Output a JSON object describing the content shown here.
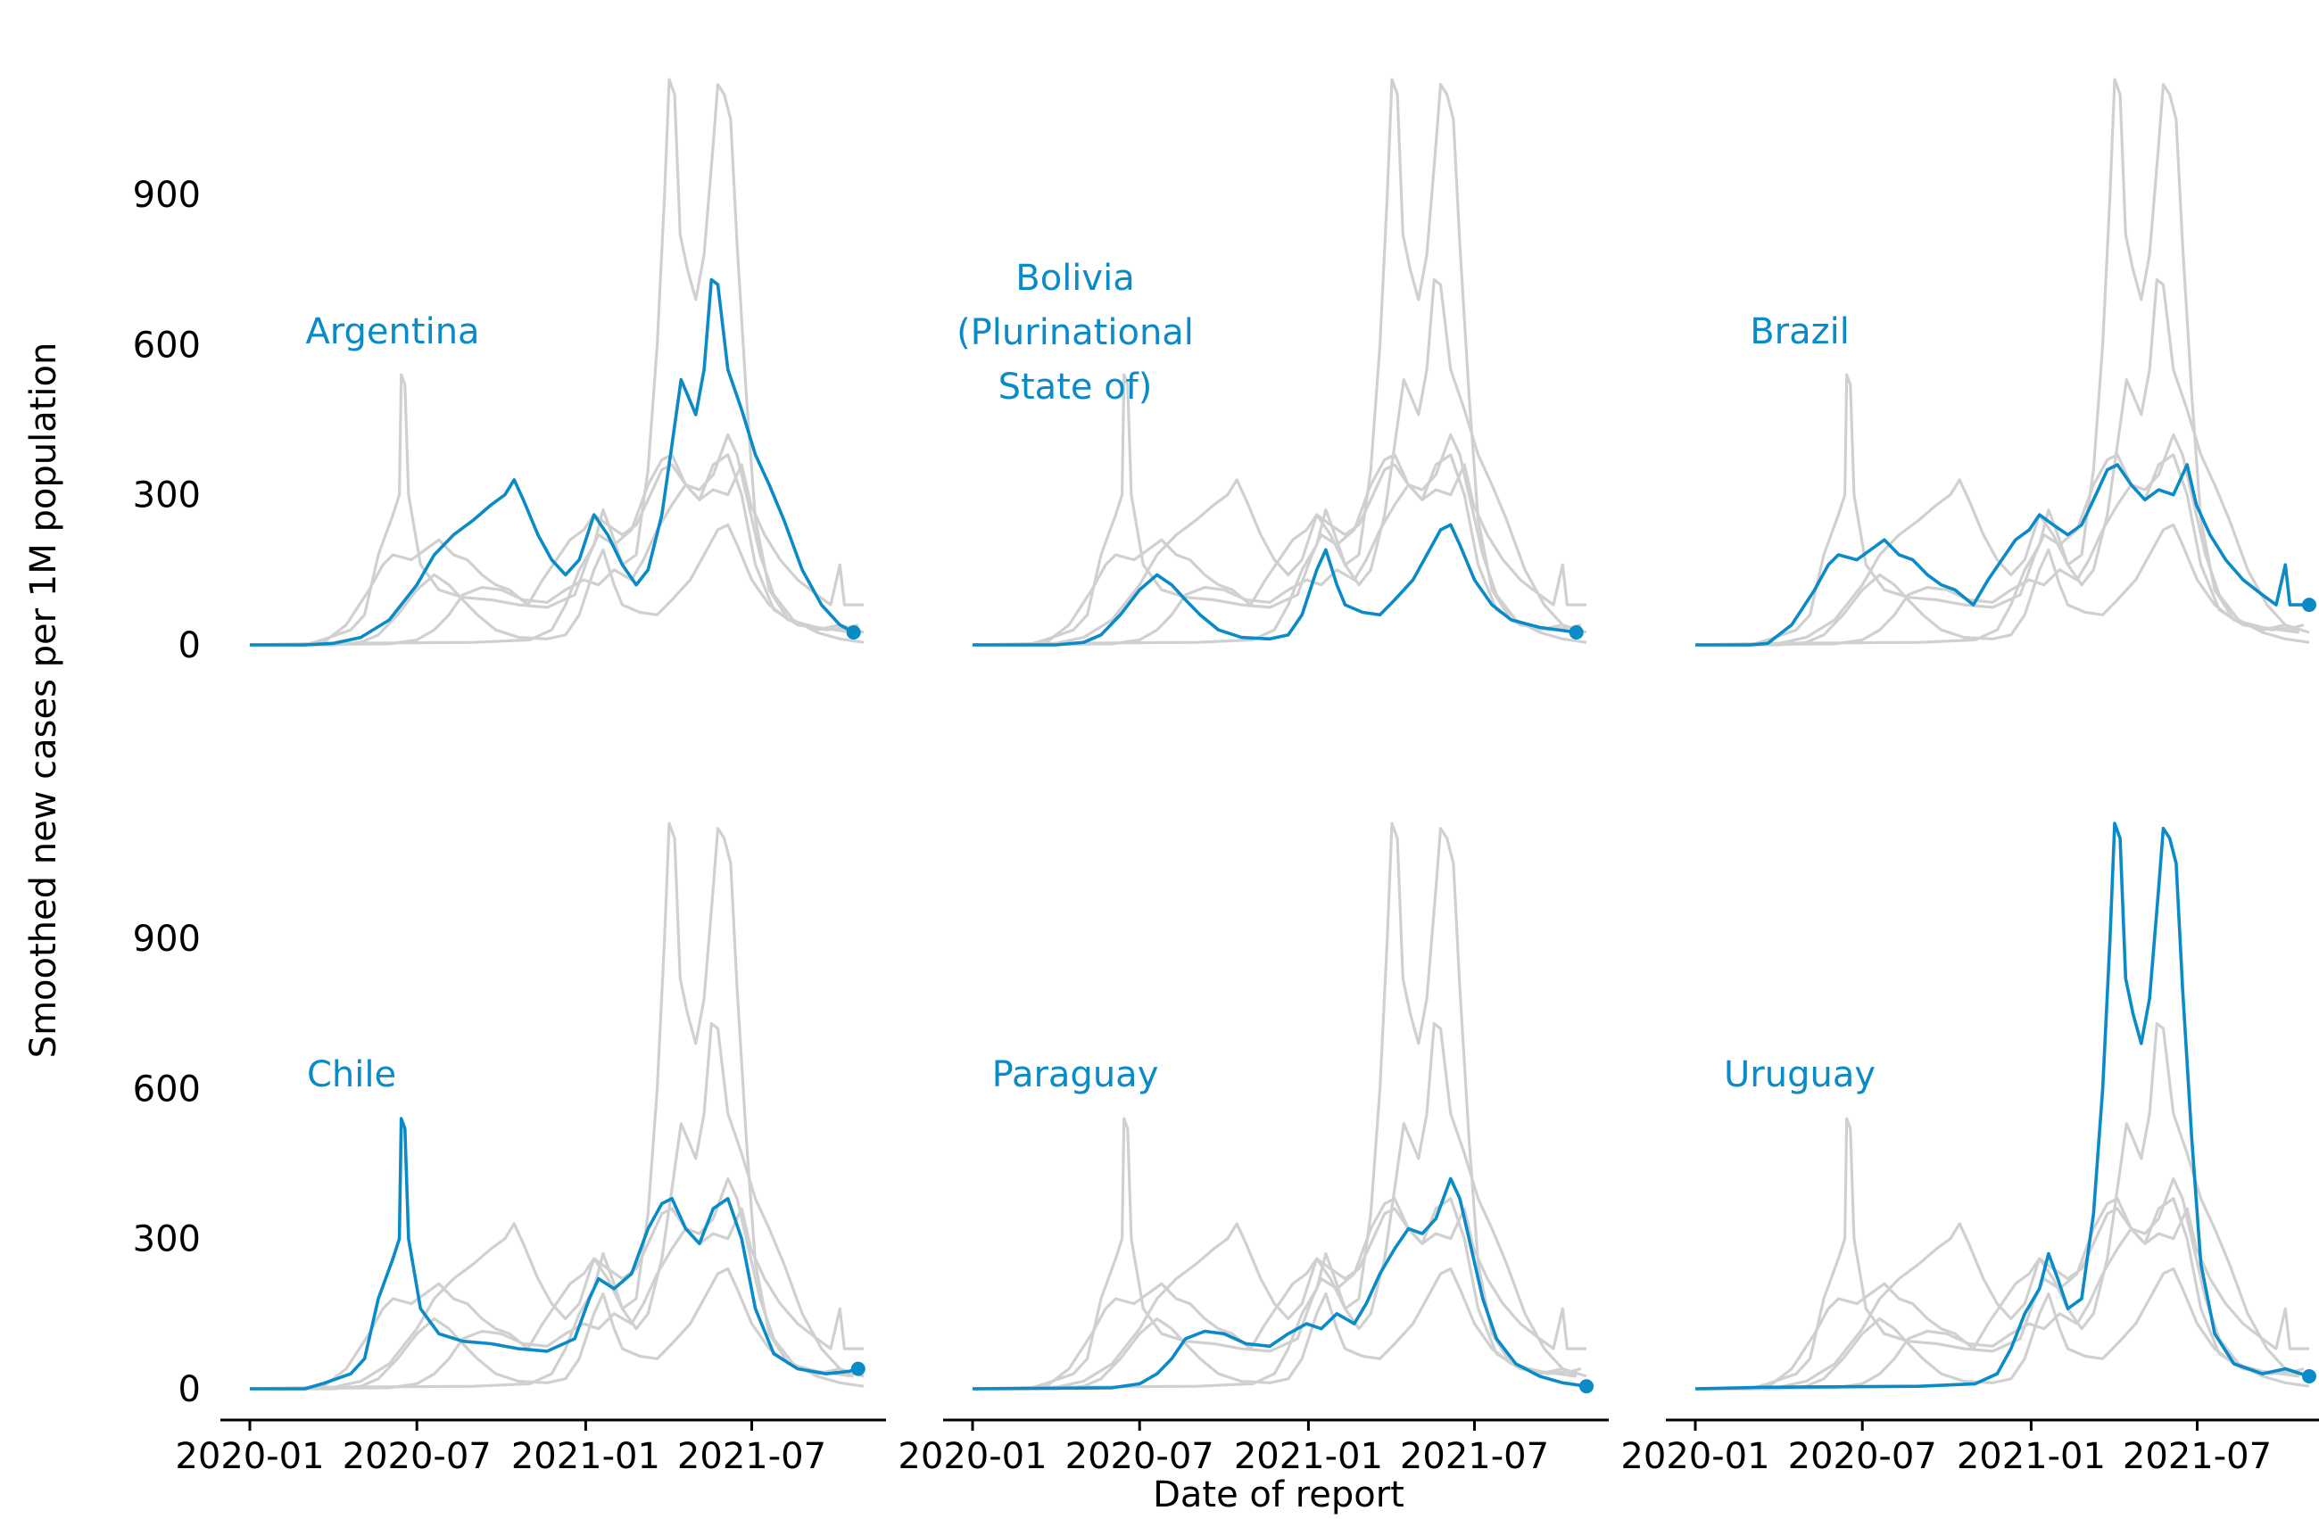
{
  "figure": {
    "xlabel": "Date of report",
    "ylabel": "Smoothed new cases per 1M population"
  },
  "chart_data": {
    "type": "line",
    "ylim": [
      0,
      1200
    ],
    "yticks": [
      0,
      300,
      600,
      900
    ],
    "xticks": [
      "2020-01",
      "2020-07",
      "2021-01",
      "2021-07"
    ],
    "xlim": [
      "2020-01-01",
      "2021-10-31"
    ],
    "grid": false,
    "highlight_color": "#0a8ac6",
    "context_color": "#d0d0d0",
    "countries": [
      {
        "name": "Argentina",
        "points": [
          [
            "2020-01-01",
            0
          ],
          [
            "2020-03-01",
            0
          ],
          [
            "2020-04-01",
            3
          ],
          [
            "2020-05-01",
            15
          ],
          [
            "2020-06-01",
            50
          ],
          [
            "2020-07-01",
            120
          ],
          [
            "2020-07-20",
            180
          ],
          [
            "2020-08-10",
            220
          ],
          [
            "2020-09-01",
            250
          ],
          [
            "2020-09-20",
            280
          ],
          [
            "2020-10-05",
            300
          ],
          [
            "2020-10-15",
            330
          ],
          [
            "2020-10-25",
            290
          ],
          [
            "2020-11-10",
            220
          ],
          [
            "2020-11-25",
            170
          ],
          [
            "2020-12-10",
            140
          ],
          [
            "2020-12-25",
            170
          ],
          [
            "2021-01-10",
            260
          ],
          [
            "2021-01-25",
            220
          ],
          [
            "2021-02-10",
            160
          ],
          [
            "2021-02-25",
            120
          ],
          [
            "2021-03-10",
            150
          ],
          [
            "2021-03-25",
            260
          ],
          [
            "2021-04-05",
            400
          ],
          [
            "2021-04-15",
            530
          ],
          [
            "2021-04-22",
            500
          ],
          [
            "2021-05-01",
            460
          ],
          [
            "2021-05-10",
            550
          ],
          [
            "2021-05-18",
            730
          ],
          [
            "2021-05-25",
            720
          ],
          [
            "2021-06-05",
            550
          ],
          [
            "2021-06-20",
            470
          ],
          [
            "2021-07-05",
            380
          ],
          [
            "2021-07-20",
            320
          ],
          [
            "2021-08-05",
            250
          ],
          [
            "2021-08-25",
            150
          ],
          [
            "2021-09-15",
            80
          ],
          [
            "2021-10-05",
            40
          ],
          [
            "2021-10-20",
            25
          ]
        ]
      },
      {
        "name": "Bolivia (Plurinational State of)",
        "points": [
          [
            "2020-01-01",
            0
          ],
          [
            "2020-04-01",
            0
          ],
          [
            "2020-05-01",
            5
          ],
          [
            "2020-05-20",
            20
          ],
          [
            "2020-06-10",
            60
          ],
          [
            "2020-07-01",
            110
          ],
          [
            "2020-07-20",
            140
          ],
          [
            "2020-08-05",
            120
          ],
          [
            "2020-08-20",
            90
          ],
          [
            "2020-09-05",
            60
          ],
          [
            "2020-09-25",
            30
          ],
          [
            "2020-10-20",
            15
          ],
          [
            "2020-11-20",
            12
          ],
          [
            "2020-12-10",
            20
          ],
          [
            "2020-12-25",
            60
          ],
          [
            "2021-01-10",
            150
          ],
          [
            "2021-01-20",
            190
          ],
          [
            "2021-02-01",
            120
          ],
          [
            "2021-02-10",
            80
          ],
          [
            "2021-03-01",
            65
          ],
          [
            "2021-03-20",
            60
          ],
          [
            "2021-04-05",
            90
          ],
          [
            "2021-04-25",
            130
          ],
          [
            "2021-05-10",
            180
          ],
          [
            "2021-05-25",
            230
          ],
          [
            "2021-06-05",
            240
          ],
          [
            "2021-06-15",
            200
          ],
          [
            "2021-07-01",
            130
          ],
          [
            "2021-07-20",
            80
          ],
          [
            "2021-08-10",
            50
          ],
          [
            "2021-09-10",
            35
          ],
          [
            "2021-10-20",
            25
          ]
        ]
      },
      {
        "name": "Brazil",
        "points": [
          [
            "2020-01-01",
            0
          ],
          [
            "2020-03-01",
            0
          ],
          [
            "2020-03-20",
            3
          ],
          [
            "2020-04-15",
            40
          ],
          [
            "2020-05-10",
            110
          ],
          [
            "2020-05-25",
            160
          ],
          [
            "2020-06-05",
            180
          ],
          [
            "2020-06-25",
            170
          ],
          [
            "2020-07-10",
            190
          ],
          [
            "2020-07-25",
            210
          ],
          [
            "2020-08-10",
            180
          ],
          [
            "2020-08-25",
            170
          ],
          [
            "2020-09-10",
            140
          ],
          [
            "2020-09-25",
            120
          ],
          [
            "2020-10-10",
            110
          ],
          [
            "2020-10-30",
            80
          ],
          [
            "2020-11-15",
            130
          ],
          [
            "2020-11-30",
            170
          ],
          [
            "2020-12-15",
            210
          ],
          [
            "2020-12-30",
            230
          ],
          [
            "2021-01-10",
            260
          ],
          [
            "2021-01-25",
            240
          ],
          [
            "2021-02-10",
            220
          ],
          [
            "2021-02-25",
            240
          ],
          [
            "2021-03-10",
            290
          ],
          [
            "2021-03-25",
            350
          ],
          [
            "2021-04-05",
            360
          ],
          [
            "2021-04-20",
            320
          ],
          [
            "2021-05-05",
            290
          ],
          [
            "2021-05-20",
            310
          ],
          [
            "2021-06-05",
            300
          ],
          [
            "2021-06-20",
            360
          ],
          [
            "2021-06-30",
            280
          ],
          [
            "2021-07-15",
            220
          ],
          [
            "2021-08-01",
            170
          ],
          [
            "2021-08-20",
            130
          ],
          [
            "2021-09-10",
            100
          ],
          [
            "2021-09-25",
            80
          ],
          [
            "2021-10-05",
            160
          ],
          [
            "2021-10-10",
            80
          ],
          [
            "2021-10-31",
            80
          ]
        ]
      },
      {
        "name": "Chile",
        "points": [
          [
            "2020-01-01",
            0
          ],
          [
            "2020-03-01",
            0
          ],
          [
            "2020-03-20",
            10
          ],
          [
            "2020-04-20",
            30
          ],
          [
            "2020-05-05",
            60
          ],
          [
            "2020-05-20",
            180
          ],
          [
            "2020-06-05",
            260
          ],
          [
            "2020-06-12",
            300
          ],
          [
            "2020-06-14",
            540
          ],
          [
            "2020-06-18",
            520
          ],
          [
            "2020-06-22",
            300
          ],
          [
            "2020-07-05",
            160
          ],
          [
            "2020-07-25",
            110
          ],
          [
            "2020-08-20",
            95
          ],
          [
            "2020-09-20",
            90
          ],
          [
            "2020-10-20",
            80
          ],
          [
            "2020-11-20",
            75
          ],
          [
            "2020-12-20",
            100
          ],
          [
            "2021-01-05",
            180
          ],
          [
            "2021-01-15",
            220
          ],
          [
            "2021-02-01",
            200
          ],
          [
            "2021-02-20",
            230
          ],
          [
            "2021-03-10",
            320
          ],
          [
            "2021-03-25",
            370
          ],
          [
            "2021-04-05",
            380
          ],
          [
            "2021-04-20",
            320
          ],
          [
            "2021-05-05",
            290
          ],
          [
            "2021-05-20",
            360
          ],
          [
            "2021-06-05",
            380
          ],
          [
            "2021-06-20",
            300
          ],
          [
            "2021-07-05",
            160
          ],
          [
            "2021-07-25",
            70
          ],
          [
            "2021-08-20",
            40
          ],
          [
            "2021-09-20",
            30
          ],
          [
            "2021-10-15",
            35
          ],
          [
            "2021-10-25",
            40
          ]
        ]
      },
      {
        "name": "Paraguay",
        "points": [
          [
            "2020-01-01",
            0
          ],
          [
            "2020-06-01",
            2
          ],
          [
            "2020-07-01",
            10
          ],
          [
            "2020-07-20",
            30
          ],
          [
            "2020-08-05",
            60
          ],
          [
            "2020-08-20",
            100
          ],
          [
            "2020-09-10",
            115
          ],
          [
            "2020-10-01",
            110
          ],
          [
            "2020-10-25",
            90
          ],
          [
            "2020-11-20",
            85
          ],
          [
            "2020-12-10",
            110
          ],
          [
            "2020-12-30",
            130
          ],
          [
            "2021-01-15",
            120
          ],
          [
            "2021-02-01",
            150
          ],
          [
            "2021-02-20",
            130
          ],
          [
            "2021-03-05",
            170
          ],
          [
            "2021-03-20",
            230
          ],
          [
            "2021-04-05",
            280
          ],
          [
            "2021-04-20",
            320
          ],
          [
            "2021-05-05",
            310
          ],
          [
            "2021-05-20",
            340
          ],
          [
            "2021-06-05",
            420
          ],
          [
            "2021-06-15",
            380
          ],
          [
            "2021-06-25",
            300
          ],
          [
            "2021-07-10",
            180
          ],
          [
            "2021-07-25",
            100
          ],
          [
            "2021-08-15",
            50
          ],
          [
            "2021-09-10",
            25
          ],
          [
            "2021-10-05",
            12
          ],
          [
            "2021-10-31",
            5
          ]
        ]
      },
      {
        "name": "Uruguay",
        "points": [
          [
            "2020-01-01",
            0
          ],
          [
            "2020-03-15",
            3
          ],
          [
            "2020-06-01",
            4
          ],
          [
            "2020-09-01",
            5
          ],
          [
            "2020-11-01",
            10
          ],
          [
            "2020-11-25",
            30
          ],
          [
            "2020-12-10",
            80
          ],
          [
            "2020-12-25",
            150
          ],
          [
            "2021-01-10",
            200
          ],
          [
            "2021-01-20",
            270
          ],
          [
            "2021-01-30",
            220
          ],
          [
            "2021-02-10",
            160
          ],
          [
            "2021-02-25",
            180
          ],
          [
            "2021-03-10",
            350
          ],
          [
            "2021-03-20",
            600
          ],
          [
            "2021-03-28",
            900
          ],
          [
            "2021-04-02",
            1130
          ],
          [
            "2021-04-08",
            1100
          ],
          [
            "2021-04-14",
            820
          ],
          [
            "2021-04-22",
            750
          ],
          [
            "2021-05-01",
            690
          ],
          [
            "2021-05-10",
            780
          ],
          [
            "2021-05-20",
            1000
          ],
          [
            "2021-05-25",
            1120
          ],
          [
            "2021-06-01",
            1100
          ],
          [
            "2021-06-08",
            1050
          ],
          [
            "2021-06-15",
            800
          ],
          [
            "2021-06-25",
            500
          ],
          [
            "2021-07-05",
            250
          ],
          [
            "2021-07-20",
            110
          ],
          [
            "2021-08-10",
            50
          ],
          [
            "2021-09-10",
            30
          ],
          [
            "2021-10-05",
            40
          ],
          [
            "2021-10-31",
            25
          ]
        ]
      }
    ]
  }
}
